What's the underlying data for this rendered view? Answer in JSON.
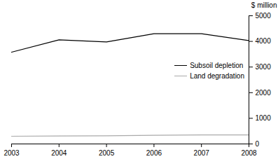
{
  "chart_data": {
    "type": "line",
    "y_label": "$ million",
    "x": [
      2003,
      2004,
      2005,
      2006,
      2007,
      2008
    ],
    "series": [
      {
        "name": "Subsoil depletion",
        "color": "#000000",
        "values": [
          3580,
          4060,
          3980,
          4300,
          4300,
          4030
        ]
      },
      {
        "name": "Land degradation",
        "color": "#aaaaaa",
        "values": [
          300,
          310,
          320,
          340,
          350,
          350
        ]
      }
    ],
    "xlim": [
      2003,
      2008
    ],
    "xticks": [
      2003,
      2004,
      2005,
      2006,
      2007,
      2008
    ],
    "ylim": [
      0,
      5000
    ],
    "yticks": [
      0,
      1000,
      2000,
      3000,
      4000,
      5000
    ],
    "grid": false,
    "legend": "right"
  }
}
